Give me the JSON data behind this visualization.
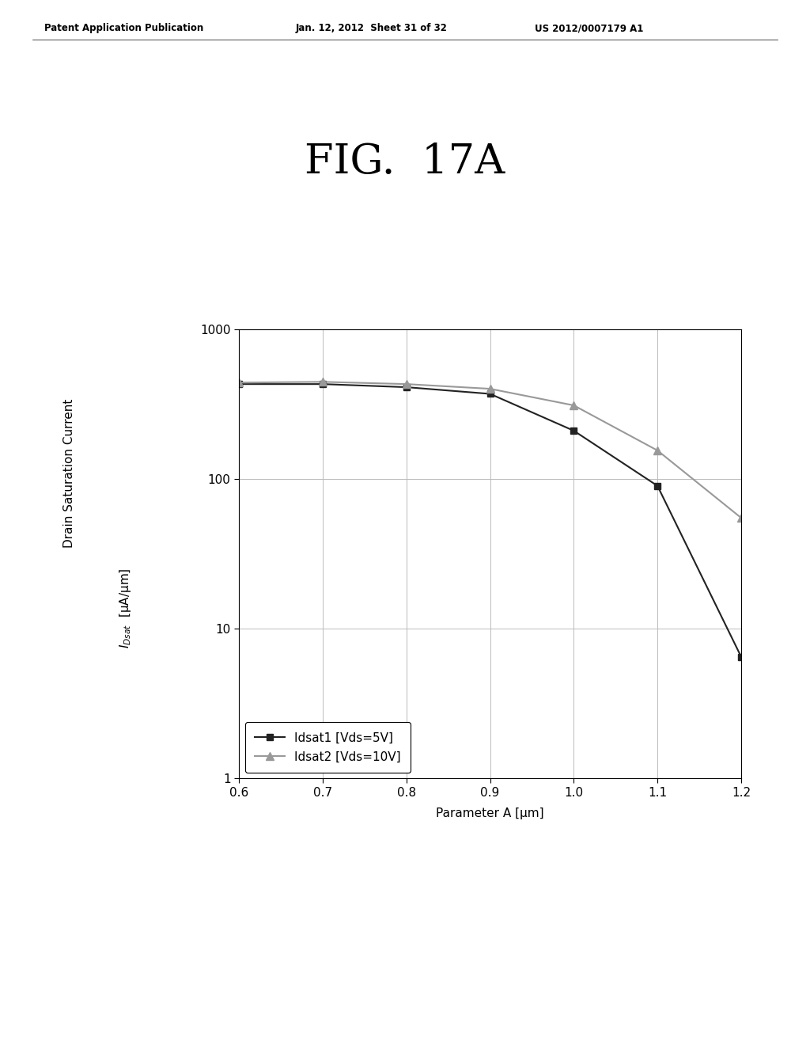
{
  "fig_title": "FIG.  17A",
  "patent_header_left": "Patent Application Publication",
  "patent_header_mid": "Jan. 12, 2012  Sheet 31 of 32",
  "patent_header_right": "US 2012/0007179 A1",
  "xlabel": "Parameter A [μm]",
  "ylabel_line1": "Drain Saturation Current",
  "ylabel_line2": "Iᴅₛₐₜ [μA/μm]",
  "xlim": [
    0.6,
    1.2
  ],
  "ylim": [
    1,
    1000
  ],
  "xticks": [
    0.6,
    0.7,
    0.8,
    0.9,
    1.0,
    1.1,
    1.2
  ],
  "series1_x": [
    0.6,
    0.7,
    0.8,
    0.9,
    1.0,
    1.1,
    1.2
  ],
  "series1_y": [
    430,
    430,
    410,
    370,
    210,
    90,
    6.5
  ],
  "series2_x": [
    0.6,
    0.7,
    0.8,
    0.9,
    1.0,
    1.1,
    1.2
  ],
  "series2_y": [
    440,
    445,
    430,
    400,
    310,
    155,
    55
  ],
  "series1_label": "Idsat1 [Vds=5V]",
  "series2_label": "Idsat2 [Vds=10V]",
  "series1_color": "#222222",
  "series2_color": "#999999",
  "background_color": "#ffffff",
  "grid_color": "#bbbbbb",
  "header_fontsize": 8.5,
  "title_fontsize": 38,
  "axis_fontsize": 11,
  "legend_fontsize": 11
}
